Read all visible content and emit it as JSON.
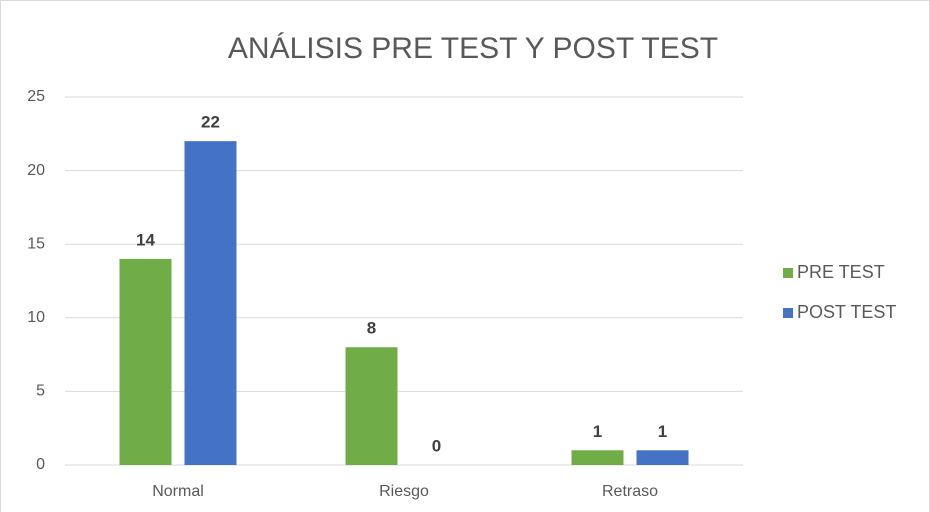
{
  "chart_data": {
    "type": "bar",
    "title": "ANÁLISIS PRE TEST Y POST TEST",
    "categories": [
      "Normal",
      "Riesgo",
      "Retraso"
    ],
    "series": [
      {
        "name": "PRE TEST",
        "color": "#70ad47",
        "values": [
          14,
          8,
          1
        ]
      },
      {
        "name": "POST TEST",
        "color": "#4472c4",
        "values": [
          22,
          0,
          1
        ]
      }
    ],
    "ylim": [
      0,
      25
    ],
    "yticks": [
      0,
      5,
      10,
      15,
      20,
      25
    ],
    "grid": true,
    "legend": "right"
  }
}
